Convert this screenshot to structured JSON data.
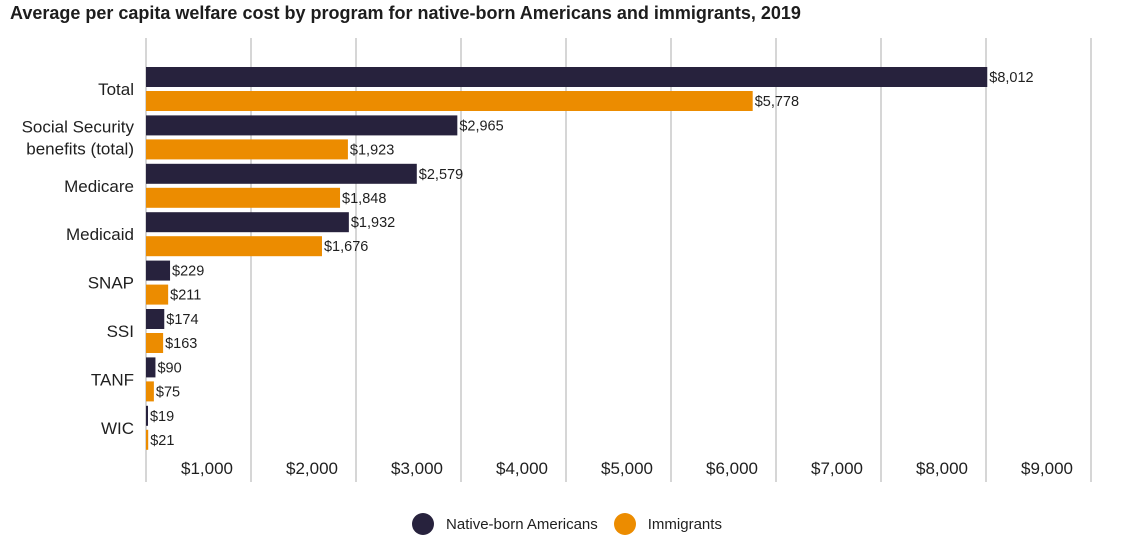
{
  "colors": {
    "native": "#27223d",
    "immigrant": "#ec8c00",
    "grid": "#c8c8c8"
  },
  "chart_data": {
    "type": "bar",
    "orientation": "horizontal",
    "title": "Average per capita welfare cost by program for native-born Americans and immigrants, 2019",
    "categories": [
      "Total",
      "Social Security benefits (total)",
      "Medicare",
      "Medicaid",
      "SNAP",
      "SSI",
      "TANF",
      "WIC"
    ],
    "category_lines": [
      [
        "Total"
      ],
      [
        "Social Security",
        "benefits (total)"
      ],
      [
        "Medicare"
      ],
      [
        "Medicaid"
      ],
      [
        "SNAP"
      ],
      [
        "SSI"
      ],
      [
        "TANF"
      ],
      [
        "WIC"
      ]
    ],
    "series": [
      {
        "name": "Native-born Americans",
        "values": [
          8012,
          2965,
          2579,
          1932,
          229,
          174,
          90,
          19
        ],
        "labels": [
          "$8,012",
          "$2,965",
          "$2,579",
          "$1,932",
          "$229",
          "$174",
          "$90",
          "$19"
        ]
      },
      {
        "name": "Immigrants",
        "values": [
          5778,
          1923,
          1848,
          1676,
          211,
          163,
          75,
          21
        ],
        "labels": [
          "$5,778",
          "$1,923",
          "$1,848",
          "$1,676",
          "$211",
          "$163",
          "$75",
          "$21"
        ]
      }
    ],
    "xlim": [
      0,
      9000
    ],
    "xticks": [
      1000,
      2000,
      3000,
      4000,
      5000,
      6000,
      7000,
      8000,
      9000
    ],
    "xtick_labels": [
      "$1,000",
      "$2,000",
      "$3,000",
      "$4,000",
      "$5,000",
      "$6,000",
      "$7,000",
      "$8,000",
      "$9,000"
    ],
    "xlabel": "",
    "ylabel": "",
    "grid": true,
    "legend_position": "bottom-center"
  }
}
